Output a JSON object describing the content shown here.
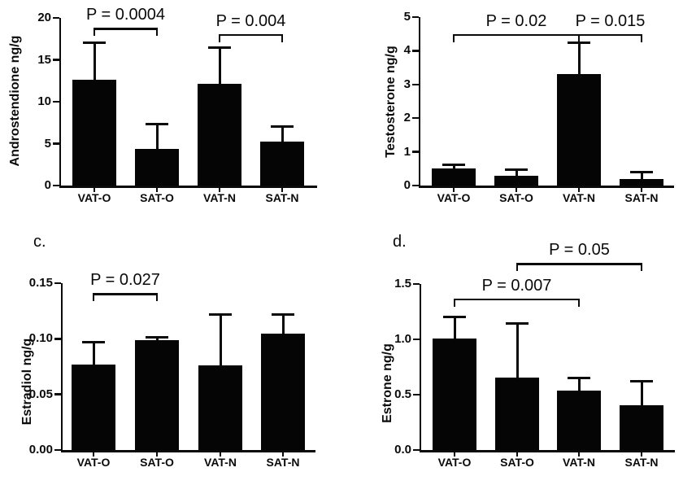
{
  "figure": {
    "background": "#ffffff",
    "ink": "#0a0a0a"
  },
  "chart_data": [
    {
      "type": "bar",
      "panel_letter": "",
      "ylabel": "Androstendione ng/g",
      "categories": [
        "VAT-O",
        "SAT-O",
        "VAT-N",
        "SAT-N"
      ],
      "values": [
        12.6,
        4.4,
        12.1,
        5.2
      ],
      "error_top": [
        17.0,
        7.3,
        16.5,
        7.0
      ],
      "ylim": [
        0,
        20
      ],
      "yticks": [
        0,
        5,
        10,
        15,
        20
      ],
      "ytick_labels": [
        "0",
        "5",
        "10",
        "15",
        "20"
      ],
      "bar_color": "#050505",
      "grid": false,
      "legend": "none",
      "significance_brackets": [
        {
          "label": "P = 0.0004",
          "from": 0,
          "to": 1,
          "y": 18.8
        },
        {
          "label": "P = 0.004",
          "from": 2,
          "to": 3,
          "y": 18.1
        }
      ]
    },
    {
      "type": "bar",
      "panel_letter": "",
      "ylabel": "Testosterone ng/g",
      "categories": [
        "VAT-O",
        "SAT-O",
        "VAT-N",
        "SAT-N"
      ],
      "values": [
        0.51,
        0.29,
        3.3,
        0.2
      ],
      "error_top": [
        0.62,
        0.48,
        4.25,
        0.4
      ],
      "ylim": [
        0,
        5
      ],
      "yticks": [
        0,
        1,
        2,
        3,
        4,
        5
      ],
      "ytick_labels": [
        "0",
        "1",
        "2",
        "3",
        "4",
        "5"
      ],
      "bar_color": "#050505",
      "grid": false,
      "legend": "none",
      "significance_brackets": [
        {
          "label": "P = 0.02",
          "from": 0,
          "to": 2,
          "y": 4.5
        },
        {
          "label": "P = 0.015",
          "from": 2,
          "to": 3,
          "y": 4.5
        }
      ]
    },
    {
      "type": "bar",
      "panel_letter": "c.",
      "ylabel": "Estradiol ng/g",
      "categories": [
        "VAT-O",
        "SAT-O",
        "VAT-N",
        "SAT-N"
      ],
      "values": [
        0.077,
        0.099,
        0.076,
        0.105
      ],
      "error_top": [
        0.097,
        0.101,
        0.122,
        0.122
      ],
      "ylim": [
        0,
        0.15
      ],
      "yticks": [
        0,
        0.05,
        0.1,
        0.15
      ],
      "ytick_labels": [
        "0.00",
        "0.05",
        "0.10",
        "0.15"
      ],
      "bar_color": "#050505",
      "grid": false,
      "legend": "none",
      "significance_brackets": [
        {
          "label": "P = 0.027",
          "from": 0,
          "to": 1,
          "y": 0.141
        }
      ]
    },
    {
      "type": "bar",
      "panel_letter": "d.",
      "ylabel": "Estrone ng/g",
      "categories": [
        "VAT-O",
        "SAT-O",
        "VAT-N",
        "SAT-N"
      ],
      "values": [
        1.01,
        0.655,
        0.54,
        0.405
      ],
      "error_top": [
        1.2,
        1.14,
        0.65,
        0.62
      ],
      "ylim": [
        0,
        1.5
      ],
      "yticks": [
        0,
        0.5,
        1.0,
        1.5
      ],
      "ytick_labels": [
        "0.0",
        "0.5",
        "1.0",
        "1.5"
      ],
      "bar_color": "#050505",
      "grid": false,
      "legend": "none",
      "significance_brackets": [
        {
          "label": "P = 0.007",
          "from": 0,
          "to": 2,
          "y": 1.37
        },
        {
          "label": "P = 0.05",
          "from": 1,
          "to": 3,
          "y": 1.69
        }
      ]
    }
  ]
}
